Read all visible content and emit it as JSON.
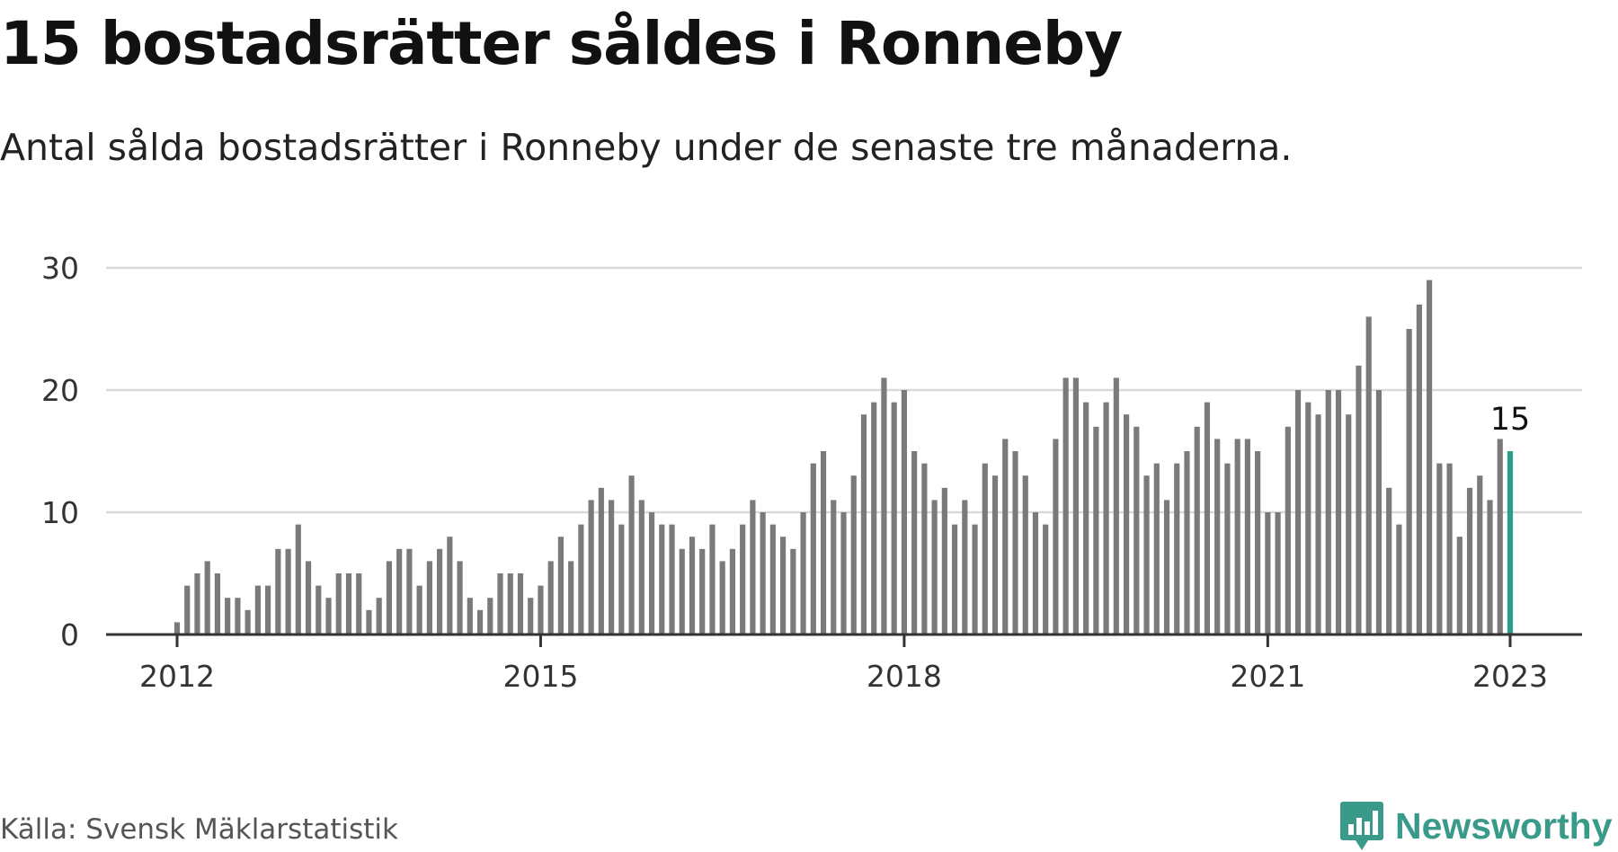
{
  "header": {
    "title": "15 bostadsrätter såldes i Ronneby",
    "subtitle": "Antal sålda bostadsrätter i Ronneby under de senaste tre månaderna."
  },
  "footer": {
    "source": "Källa: Svensk Mäklarstatistik",
    "brand": "Newsworthy",
    "brand_icon": "newsworthy-logo-icon"
  },
  "colors": {
    "bar": "#7a7a7a",
    "highlight": "#2a9d8f",
    "grid": "#d9d9d9",
    "axis": "#333333",
    "brand": "#3a9a8a"
  },
  "chart_data": {
    "type": "bar",
    "title": "15 bostadsrätter såldes i Ronneby",
    "subtitle": "Antal sålda bostadsrätter i Ronneby under de senaste tre månaderna.",
    "xlabel": "",
    "ylabel": "",
    "ylim": [
      0,
      30
    ],
    "yticks": [
      0,
      10,
      20,
      30
    ],
    "xticks": [
      "2012",
      "2015",
      "2018",
      "2021",
      "2023"
    ],
    "start": "2012-01",
    "end": "2023-01",
    "grid": true,
    "legend": "none",
    "highlight_label": "15",
    "values": [
      1,
      4,
      5,
      6,
      5,
      3,
      3,
      2,
      4,
      4,
      7,
      7,
      9,
      6,
      4,
      3,
      5,
      5,
      5,
      2,
      3,
      6,
      7,
      7,
      4,
      6,
      7,
      8,
      6,
      3,
      2,
      3,
      5,
      5,
      5,
      3,
      4,
      6,
      8,
      6,
      9,
      11,
      12,
      11,
      9,
      13,
      11,
      10,
      9,
      9,
      7,
      8,
      7,
      9,
      6,
      7,
      9,
      11,
      10,
      9,
      8,
      7,
      10,
      14,
      15,
      11,
      10,
      13,
      18,
      19,
      21,
      19,
      20,
      15,
      14,
      11,
      12,
      9,
      11,
      9,
      14,
      13,
      16,
      15,
      13,
      10,
      9,
      16,
      21,
      21,
      19,
      17,
      19,
      21,
      18,
      17,
      13,
      14,
      11,
      14,
      15,
      17,
      19,
      16,
      14,
      16,
      16,
      15,
      10,
      10,
      17,
      20,
      19,
      18,
      20,
      20,
      18,
      22,
      26,
      20,
      12,
      9,
      25,
      27,
      29,
      14,
      14,
      8,
      12,
      13,
      11,
      16,
      15
    ]
  }
}
